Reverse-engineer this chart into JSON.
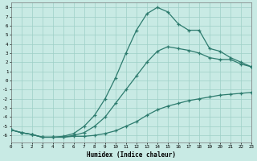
{
  "xlabel": "Humidex (Indice chaleur)",
  "bg_color": "#c8eae4",
  "grid_color": "#9ecfc7",
  "line_color": "#2d7b6e",
  "xlim": [
    0,
    23
  ],
  "ylim": [
    -6.8,
    8.5
  ],
  "xticks": [
    0,
    1,
    2,
    3,
    4,
    5,
    6,
    7,
    8,
    9,
    10,
    11,
    12,
    13,
    14,
    15,
    16,
    17,
    18,
    19,
    20,
    21,
    22,
    23
  ],
  "yticks": [
    -6,
    -5,
    -4,
    -3,
    -2,
    -1,
    0,
    1,
    2,
    3,
    4,
    5,
    6,
    7,
    8
  ],
  "line1_x": [
    0,
    1,
    2,
    3,
    4,
    5,
    6,
    7,
    8,
    9,
    10,
    11,
    12,
    13,
    14,
    15,
    16,
    17,
    18,
    19,
    20,
    21,
    22,
    23
  ],
  "line1_y": [
    -5.4,
    -5.7,
    -5.9,
    -6.2,
    -6.2,
    -6.2,
    -6.1,
    -6.1,
    -6.0,
    -5.8,
    -5.5,
    -5.0,
    -4.5,
    -3.8,
    -3.2,
    -2.8,
    -2.5,
    -2.2,
    -2.0,
    -1.8,
    -1.6,
    -1.5,
    -1.4,
    -1.3
  ],
  "line2_x": [
    0,
    1,
    2,
    3,
    4,
    5,
    6,
    7,
    8,
    9,
    10,
    11,
    12,
    13,
    14,
    15,
    16,
    17,
    18,
    19,
    20,
    21,
    22,
    23
  ],
  "line2_y": [
    -5.4,
    -5.7,
    -5.9,
    -6.2,
    -6.2,
    -6.2,
    -6.0,
    -5.7,
    -5.0,
    -4.0,
    -2.5,
    -1.0,
    0.5,
    2.0,
    3.2,
    3.7,
    3.5,
    3.3,
    3.0,
    2.5,
    2.3,
    2.3,
    1.8,
    1.5
  ],
  "line3_x": [
    0,
    1,
    2,
    3,
    4,
    5,
    6,
    7,
    8,
    9,
    10,
    11,
    12,
    13,
    14,
    15,
    16,
    17,
    18,
    19,
    20,
    21,
    22,
    23
  ],
  "line3_y": [
    -5.4,
    -5.7,
    -5.9,
    -6.2,
    -6.2,
    -6.1,
    -5.8,
    -5.0,
    -3.8,
    -2.0,
    0.3,
    3.0,
    5.5,
    7.3,
    8.0,
    7.5,
    6.2,
    5.5,
    5.5,
    3.5,
    3.2,
    2.5,
    2.0,
    1.5
  ]
}
